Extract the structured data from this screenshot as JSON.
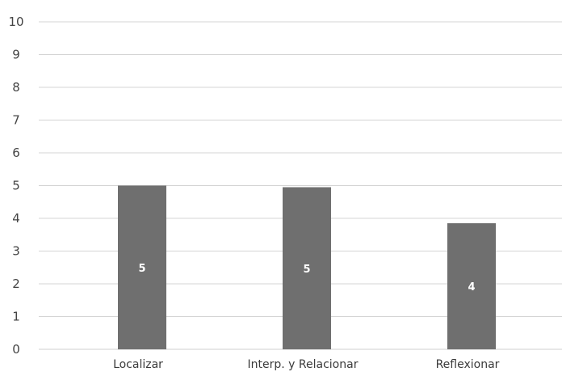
{
  "chart_data": {
    "type": "bar",
    "title": "",
    "xlabel": "",
    "ylabel": "",
    "categories": [
      "Localizar",
      "Interp. y Relacionar",
      "Reflexionar"
    ],
    "values": [
      5,
      4.95,
      3.85
    ],
    "data_labels": [
      "5",
      "5",
      "4"
    ],
    "ylim": [
      0,
      10
    ],
    "yticks": [
      "0",
      "1",
      "2",
      "3",
      "4",
      "5",
      "6",
      "7",
      "8",
      "9",
      "10"
    ],
    "grid": true,
    "legend": "none",
    "bar_color": "#6f6f6f"
  }
}
